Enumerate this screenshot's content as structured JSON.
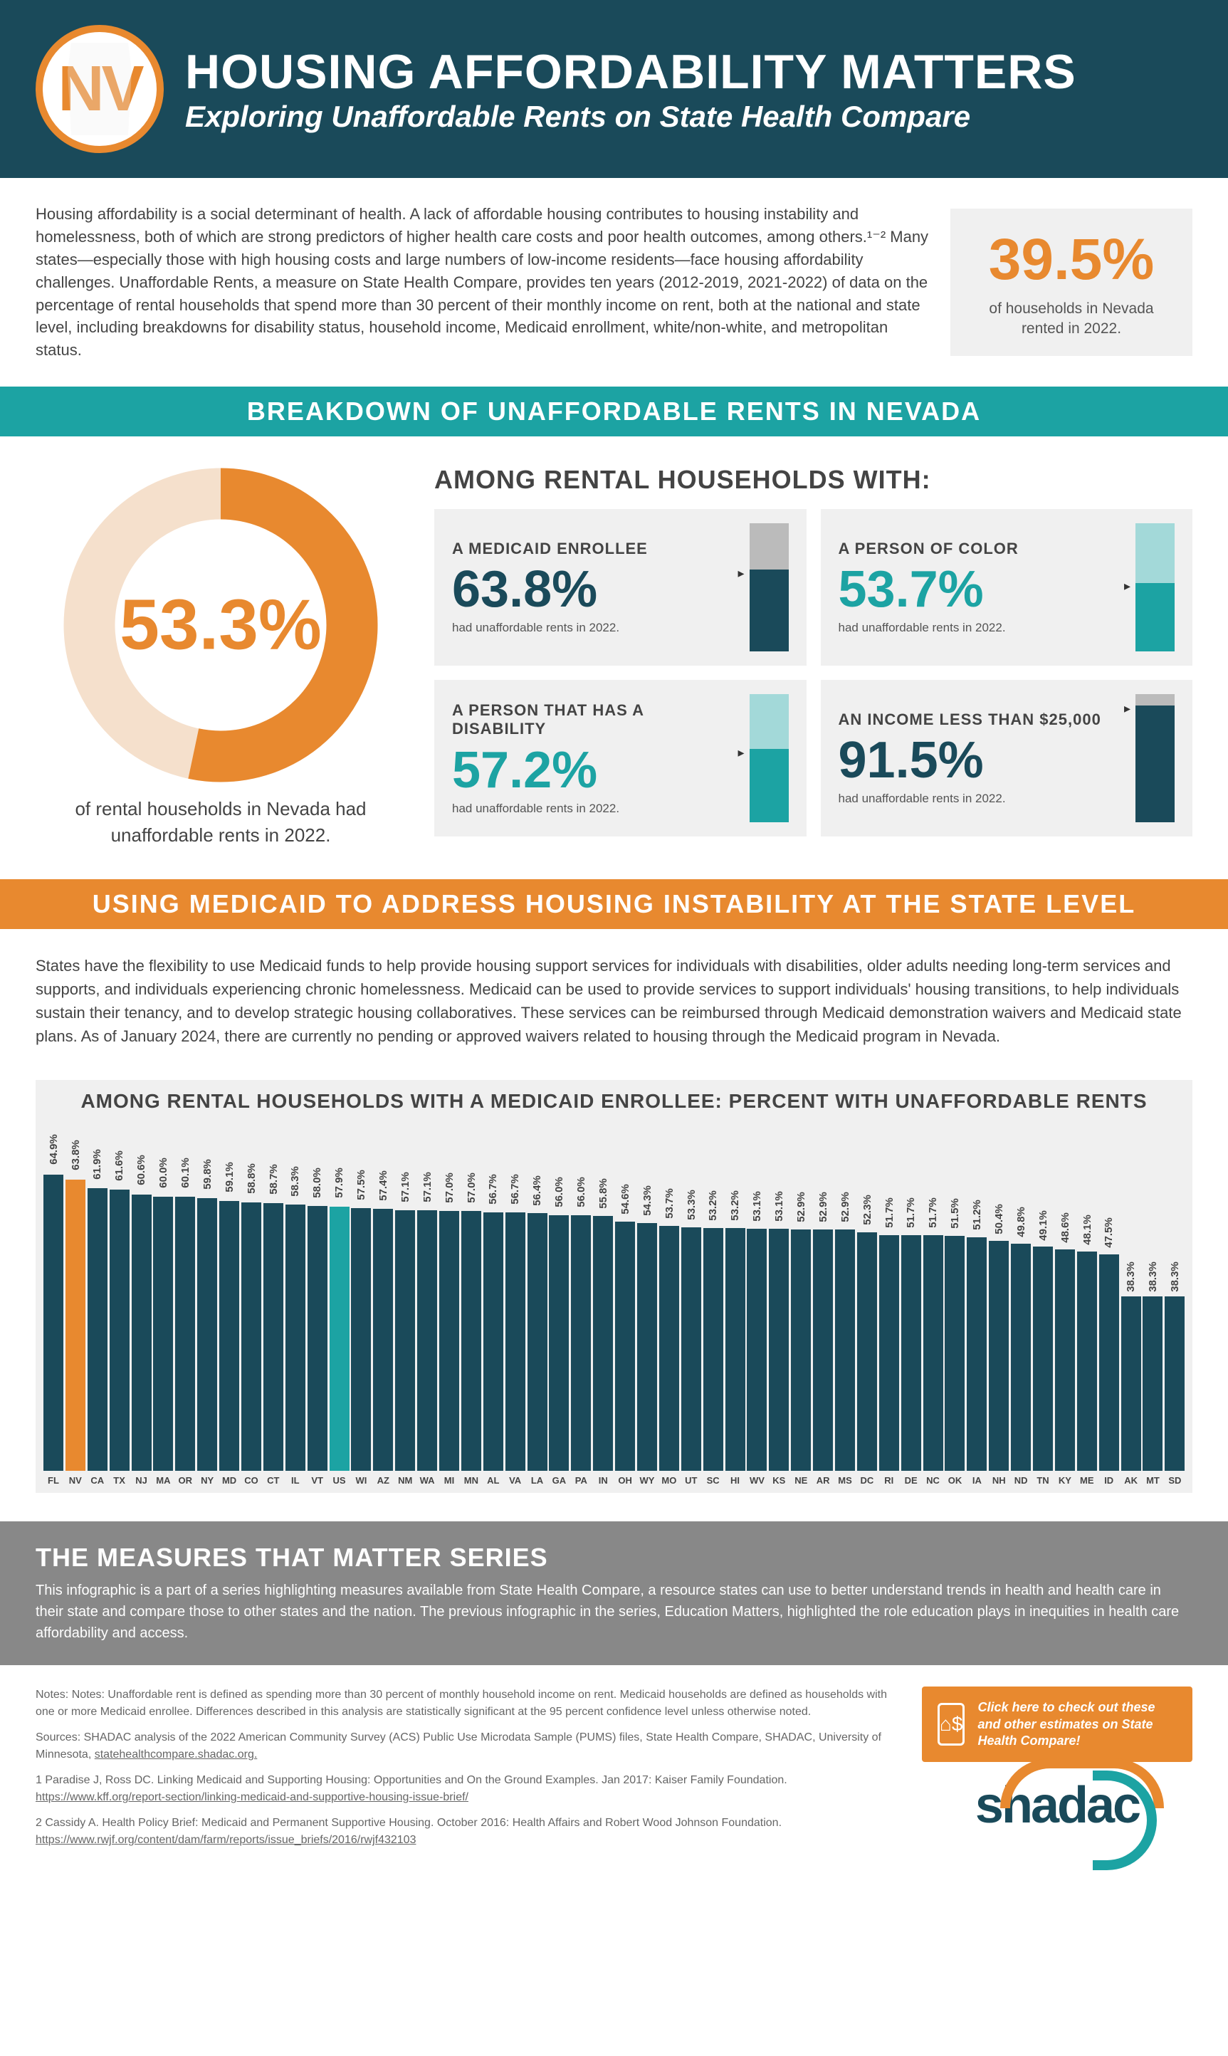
{
  "header": {
    "badge": "NV",
    "title": "HOUSING AFFORDABILITY MATTERS",
    "subtitle": "Exploring Unaffordable Rents on State Health Compare"
  },
  "intro": {
    "text": "Housing affordability is a social determinant of health. A lack of affordable housing contributes to housing instability and homelessness, both of which are strong predictors of higher health care costs and poor health outcomes, among others.¹⁻² Many states—especially those with high housing costs and large numbers of low-income residents—face housing affordability challenges. Unaffordable Rents, a measure on State Health Compare, provides ten years (2012-2019, 2021-2022) of data on the percentage of rental households that spend more than 30 percent of their monthly income on rent, both at the national and state level, including breakdowns for disability status, household income, Medicaid enrollment, white/non-white, and metropolitan status.",
    "stat_value": "39.5%",
    "stat_label": "of households in Nevada rented in 2022."
  },
  "banner1": "BREAKDOWN OF UNAFFORDABLE RENTS IN NEVADA",
  "donut": {
    "value": "53.3%",
    "percent": 53.3,
    "caption": "of rental households in Nevada had unaffordable rents in 2022.",
    "fill_color": "#e8892f",
    "track_color": "#f5e0cc"
  },
  "grid_title": "AMONG RENTAL HOUSEHOLDS WITH:",
  "cards": [
    {
      "label": "A MEDICAID ENROLLEE",
      "value": "63.8%",
      "pct": 63.8,
      "caption": "had unaffordable rents in 2022.",
      "color": "dark"
    },
    {
      "label": "A PERSON OF COLOR",
      "value": "53.7%",
      "pct": 53.7,
      "caption": "had unaffordable rents in 2022.",
      "color": "teal"
    },
    {
      "label": "A PERSON THAT HAS A DISABILITY",
      "value": "57.2%",
      "pct": 57.2,
      "caption": "had unaffordable rents in 2022.",
      "color": "teal"
    },
    {
      "label": "AN INCOME LESS THAN $25,000",
      "value": "91.5%",
      "pct": 91.5,
      "caption": "had unaffordable rents in 2022.",
      "color": "dark"
    }
  ],
  "banner2": "USING MEDICAID TO ADDRESS HOUSING INSTABILITY AT THE STATE LEVEL",
  "medicaid_text": "States have the flexibility to use Medicaid funds to help provide housing support services for individuals with disabilities, older adults needing long-term services and supports, and individuals experiencing chronic homelessness. Medicaid can be used to provide services to support individuals' housing transitions, to help individuals sustain their tenancy, and to develop strategic housing collaboratives. These services can be reimbursed through Medicaid demonstration waivers and Medicaid state plans. As of January 2024, there are currently no pending or approved waivers related to housing through the Medicaid program in Nevada.",
  "bar_chart": {
    "title": "AMONG RENTAL HOUSEHOLDS WITH A MEDICAID ENROLLEE: PERCENT WITH UNAFFORDABLE RENTS",
    "max": 70,
    "highlight_state": "NV",
    "highlight2_state": "US",
    "data": [
      {
        "state": "FL",
        "v": 64.9
      },
      {
        "state": "NV",
        "v": 63.8
      },
      {
        "state": "CA",
        "v": 61.9
      },
      {
        "state": "TX",
        "v": 61.6
      },
      {
        "state": "NJ",
        "v": 60.6
      },
      {
        "state": "MA",
        "v": 60.0
      },
      {
        "state": "OR",
        "v": 60.1
      },
      {
        "state": "NY",
        "v": 59.8
      },
      {
        "state": "MD",
        "v": 59.1
      },
      {
        "state": "CO",
        "v": 58.8
      },
      {
        "state": "CT",
        "v": 58.7
      },
      {
        "state": "IL",
        "v": 58.3
      },
      {
        "state": "VT",
        "v": 58.0
      },
      {
        "state": "US",
        "v": 57.9
      },
      {
        "state": "WI",
        "v": 57.5
      },
      {
        "state": "AZ",
        "v": 57.4
      },
      {
        "state": "NM",
        "v": 57.1
      },
      {
        "state": "WA",
        "v": 57.1
      },
      {
        "state": "MI",
        "v": 57.0
      },
      {
        "state": "MN",
        "v": 57.0
      },
      {
        "state": "AL",
        "v": 56.7
      },
      {
        "state": "VA",
        "v": 56.7
      },
      {
        "state": "LA",
        "v": 56.4
      },
      {
        "state": "GA",
        "v": 56.0
      },
      {
        "state": "PA",
        "v": 56.0
      },
      {
        "state": "IN",
        "v": 55.8
      },
      {
        "state": "OH",
        "v": 54.6
      },
      {
        "state": "WY",
        "v": 54.3
      },
      {
        "state": "MO",
        "v": 53.7
      },
      {
        "state": "UT",
        "v": 53.3
      },
      {
        "state": "SC",
        "v": 53.2
      },
      {
        "state": "HI",
        "v": 53.2
      },
      {
        "state": "WV",
        "v": 53.1
      },
      {
        "state": "KS",
        "v": 53.1
      },
      {
        "state": "NE",
        "v": 52.9
      },
      {
        "state": "AR",
        "v": 52.9
      },
      {
        "state": "MS",
        "v": 52.9
      },
      {
        "state": "DC",
        "v": 52.3
      },
      {
        "state": "RI",
        "v": 51.7
      },
      {
        "state": "DE",
        "v": 51.7
      },
      {
        "state": "NC",
        "v": 51.7
      },
      {
        "state": "OK",
        "v": 51.5
      },
      {
        "state": "IA",
        "v": 51.2
      },
      {
        "state": "NH",
        "v": 50.4
      },
      {
        "state": "ND",
        "v": 49.8
      },
      {
        "state": "TN",
        "v": 49.1
      },
      {
        "state": "KY",
        "v": 48.6
      },
      {
        "state": "ME",
        "v": 48.1
      },
      {
        "state": "ID",
        "v": 47.5
      },
      {
        "state": "AK",
        "v": 38.3
      },
      {
        "state": "MT",
        "v": 38.3
      },
      {
        "state": "SD",
        "v": 38.3
      }
    ]
  },
  "series": {
    "title": "THE MEASURES THAT MATTER SERIES",
    "text": "This infographic is a part of a series highlighting measures available from State Health Compare, a resource states can use to better understand trends in health and health care in their state and compare those to other states and the nation. The previous infographic in the series, Education Matters, highlighted the role education plays in inequities in health care affordability and access."
  },
  "notes": {
    "p1": "Notes: Notes: Unaffordable rent is defined as spending more than 30 percent of monthly household income on rent. Medicaid households are defined as households with one or more Medicaid enrollee. Differences described in this analysis are statistically significant at the 95 percent confidence level unless otherwise noted.",
    "p2": "Sources: SHADAC analysis of the 2022 American Community Survey (ACS) Public Use Microdata Sample (PUMS) files, State Health Compare, SHADAC, University of Minnesota, ",
    "p2_link": "statehealthcompare.shadac.org.",
    "p3": "1 Paradise J, Ross DC. Linking Medicaid and Supporting Housing: Opportunities and On the Ground Examples. Jan 2017: Kaiser Family Foundation. ",
    "p3_link": "https://www.kff.org/report-section/linking-medicaid-and-supportive-housing-issue-brief/",
    "p4": "2 Cassidy A. Health Policy Brief: Medicaid and Permanent Supportive Housing. October 2016: Health Affairs and Robert Wood Johnson Foundation. ",
    "p4_link": "https://www.rwjf.org/content/dam/farm/reports/issue_briefs/2016/rwjf432103"
  },
  "cta": "Click here to check out these and other estimates on State Health Compare!",
  "logo": "shadac"
}
